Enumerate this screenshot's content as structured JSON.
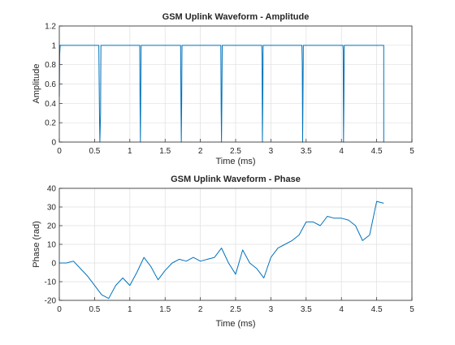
{
  "chart_data": [
    {
      "type": "line",
      "title": "GSM Uplink Waveform - Amplitude",
      "xlabel": "Time (ms)",
      "ylabel": "Amplitude",
      "xlim": [
        0,
        5
      ],
      "ylim": [
        0,
        1.2
      ],
      "xticks": [
        "0",
        "0.5",
        "1",
        "1.5",
        "2",
        "2.5",
        "3",
        "3.5",
        "4",
        "4.5",
        "5"
      ],
      "yticks": [
        "0",
        "0.2",
        "0.4",
        "0.6",
        "0.8",
        "1",
        "1.2"
      ],
      "grid": true,
      "color": "#0072BD",
      "series": [
        {
          "x": [
            0,
            0.005,
            0.012,
            0.02,
            0.56,
            0.57,
            0.575,
            0.585,
            0.59,
            0.595,
            1.14,
            1.145,
            1.15,
            1.155,
            1.16,
            1.17,
            1.72,
            1.725,
            1.73,
            1.735,
            1.74,
            1.75,
            2.29,
            2.295,
            2.3,
            2.305,
            2.31,
            2.32,
            2.87,
            2.875,
            2.88,
            2.885,
            2.89,
            2.9,
            3.44,
            3.445,
            3.45,
            3.455,
            3.46,
            3.47,
            4.02,
            4.025,
            4.03,
            4.035,
            4.04,
            4.05,
            4.6,
            4.6
          ],
          "y": [
            0.47,
            0.9,
            1.0,
            1.0,
            1.0,
            0.25,
            0.0,
            0.3,
            1.0,
            1.0,
            1.0,
            0.4,
            0.0,
            0.5,
            1.0,
            1.0,
            1.0,
            0.4,
            0.0,
            0.4,
            1.0,
            1.0,
            1.0,
            0.35,
            0.0,
            0.45,
            1.0,
            1.0,
            1.0,
            0.9,
            0.0,
            0.4,
            1.0,
            1.0,
            1.0,
            0.8,
            0.0,
            0.45,
            1.0,
            1.0,
            1.0,
            0.95,
            0.0,
            0.4,
            1.0,
            1.0,
            1.0,
            0.0
          ]
        }
      ]
    },
    {
      "type": "line",
      "title": "GSM Uplink Waveform - Phase",
      "xlabel": "Time (ms)",
      "ylabel": "Phase (rad)",
      "xlim": [
        0,
        5
      ],
      "ylim": [
        -20,
        40
      ],
      "xticks": [
        "0",
        "0.5",
        "1",
        "1.5",
        "2",
        "2.5",
        "3",
        "3.5",
        "4",
        "4.5",
        "5"
      ],
      "yticks": [
        "-20",
        "-10",
        "0",
        "10",
        "20",
        "30",
        "40"
      ],
      "grid": true,
      "color": "#0072BD",
      "series": [
        {
          "x": [
            0,
            0.1,
            0.2,
            0.3,
            0.4,
            0.5,
            0.6,
            0.7,
            0.8,
            0.9,
            1.0,
            1.1,
            1.2,
            1.3,
            1.4,
            1.5,
            1.6,
            1.7,
            1.8,
            1.9,
            2.0,
            2.1,
            2.2,
            2.3,
            2.4,
            2.5,
            2.6,
            2.7,
            2.8,
            2.9,
            3.0,
            3.1,
            3.2,
            3.3,
            3.4,
            3.5,
            3.6,
            3.7,
            3.8,
            3.9,
            4.0,
            4.1,
            4.2,
            4.3,
            4.4,
            4.5,
            4.6
          ],
          "y": [
            0,
            0,
            1,
            -3,
            -7,
            -12,
            -17,
            -19,
            -12,
            -8,
            -12,
            -5,
            3,
            -2,
            -9,
            -4,
            0,
            2,
            1,
            3,
            1,
            2,
            3,
            8,
            0,
            -6,
            7,
            0,
            -3,
            -8,
            3,
            8,
            10,
            12,
            15,
            22,
            22,
            20,
            25,
            24,
            24,
            23,
            20,
            12,
            15,
            33,
            32
          ]
        }
      ]
    }
  ]
}
